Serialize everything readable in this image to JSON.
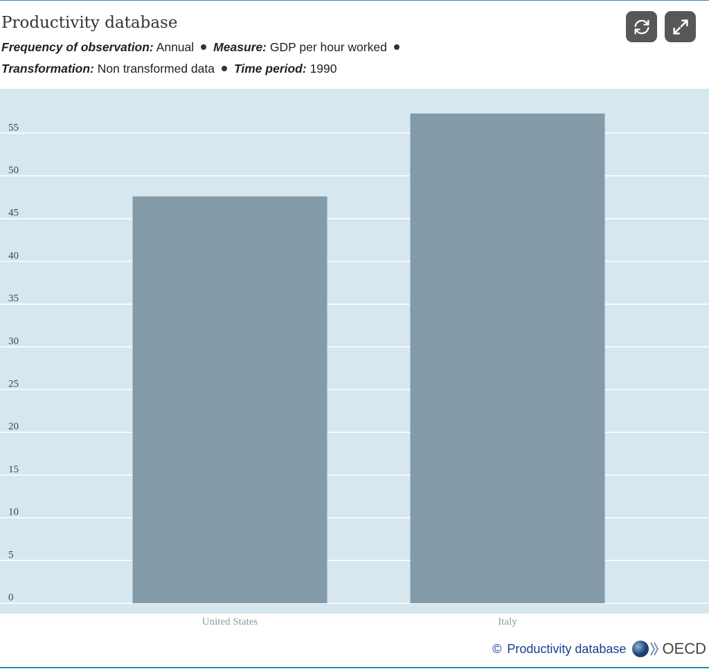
{
  "header": {
    "title": "Productivity database",
    "filters": [
      {
        "label": "Frequency of observation:",
        "value": "Annual"
      },
      {
        "label": "Measure:",
        "value": "GDP per hour worked"
      },
      {
        "label": "Transformation:",
        "value": "Non transformed data"
      },
      {
        "label": "Time period:",
        "value": "1990"
      }
    ],
    "buttons": {
      "refresh_icon": "refresh-icon",
      "expand_icon": "expand-icon"
    }
  },
  "chart_data": {
    "type": "bar",
    "categories": [
      "United States",
      "Italy"
    ],
    "values": [
      47.6,
      57.3
    ],
    "ylim": [
      0,
      57.5
    ],
    "yticks": [
      0,
      5,
      10,
      15,
      20,
      25,
      30,
      35,
      40,
      45,
      50,
      55
    ],
    "grid": true,
    "bar_color": "#839ba8",
    "background_color": "#d6e7f0"
  },
  "footer": {
    "copyright": "©",
    "source": "Productivity database",
    "logo_text": "OECD"
  }
}
